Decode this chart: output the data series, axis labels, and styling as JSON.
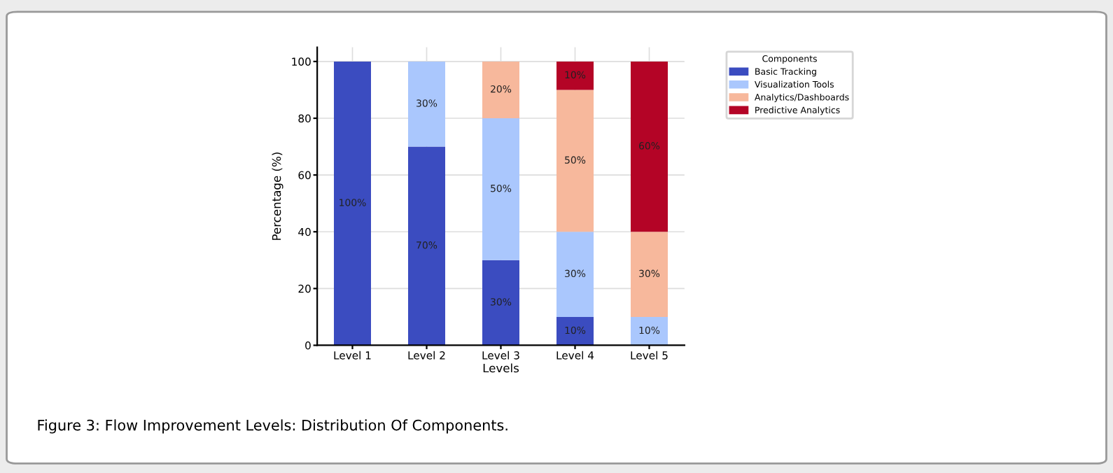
{
  "chart_data": {
    "type": "bar",
    "stacked": true,
    "xlabel": "Levels",
    "ylabel": "Percentage (%)",
    "legend_title": "Components",
    "categories": [
      "Level 1",
      "Level 2",
      "Level 3",
      "Level 4",
      "Level 5"
    ],
    "series": [
      {
        "name": "Basic Tracking",
        "color": "#3b4cc0",
        "values": [
          100,
          70,
          30,
          10,
          0
        ],
        "value_labels": [
          "100%",
          "70%",
          "30%",
          "10%",
          null
        ]
      },
      {
        "name": "Visualization Tools",
        "color": "#aac7fd",
        "values": [
          0,
          30,
          50,
          30,
          10
        ],
        "value_labels": [
          null,
          "30%",
          "50%",
          "30%",
          "10%"
        ]
      },
      {
        "name": "Analytics/Dashboards",
        "color": "#f7b89c",
        "values": [
          0,
          0,
          20,
          50,
          30
        ],
        "value_labels": [
          null,
          null,
          "20%",
          "50%",
          "30%"
        ]
      },
      {
        "name": "Predictive Analytics",
        "color": "#b40426",
        "values": [
          0,
          0,
          0,
          10,
          60
        ],
        "value_labels": [
          null,
          null,
          null,
          "10%",
          "60%"
        ]
      }
    ],
    "ylim": [
      0,
      105
    ],
    "yticks": [
      0,
      20,
      40,
      60,
      80,
      100
    ],
    "grid": true,
    "legend": "top right",
    "annotations": [
      "Figure 3: Flow Improvement Levels: Distribution Of Components."
    ]
  }
}
